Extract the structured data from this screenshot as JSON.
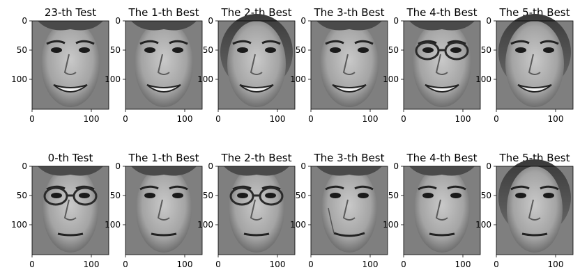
{
  "figure": {
    "rows": [
      {
        "panels": [
          {
            "title": "23-th Test",
            "face": "smile-short-hair"
          },
          {
            "title": "The 1-th Best",
            "face": "smile-short-hair"
          },
          {
            "title": "The 2-th Best",
            "face": "smile-long-hair"
          },
          {
            "title": "The 3-th Best",
            "face": "smile-short-hair"
          },
          {
            "title": "The 4-th Best",
            "face": "smile-glasses"
          },
          {
            "title": "The 5-th Best",
            "face": "smile-long-hair"
          }
        ]
      },
      {
        "panels": [
          {
            "title": "0-th Test",
            "face": "glasses-man"
          },
          {
            "title": "The 1-th Best",
            "face": "neutral-man"
          },
          {
            "title": "The 2-th Best",
            "face": "glasses-man"
          },
          {
            "title": "The 3-th Best",
            "face": "older-man"
          },
          {
            "title": "The 4-th Best",
            "face": "neutral-man"
          },
          {
            "title": "The 5-th Best",
            "face": "neutral-woman"
          }
        ]
      }
    ],
    "y_ticks": [
      "0",
      "50",
      "100"
    ],
    "x_ticks": [
      "0",
      "100"
    ]
  }
}
